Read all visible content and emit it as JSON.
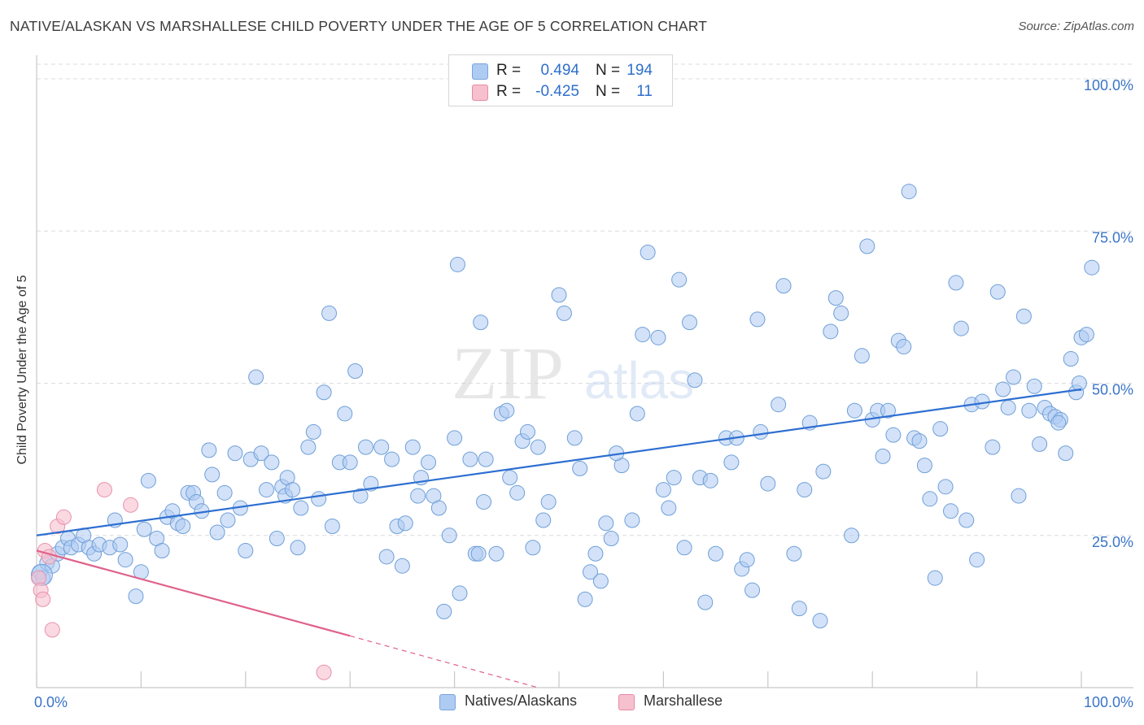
{
  "header": {
    "title": "NATIVE/ALASKAN VS MARSHALLESE CHILD POVERTY UNDER THE AGE OF 5 CORRELATION CHART",
    "source": "Source: ZipAtlas.com"
  },
  "watermark": {
    "zip": "ZIP",
    "atlas": "atlas"
  },
  "legend": {
    "rows": [
      {
        "r_label": "R =",
        "r_value": "0.494",
        "n_label": "N =",
        "n_value": "194",
        "color": "#aecbf2",
        "border": "#7aa3dc"
      },
      {
        "r_label": "R =",
        "r_value": "-0.425",
        "n_label": "N =",
        "n_value": "11",
        "color": "#f7c0cf",
        "border": "#e58aa5"
      }
    ]
  },
  "bottom_legend": {
    "natives": "Natives/Alaskans",
    "marshallese": "Marshallese"
  },
  "colors": {
    "native_fill": "#aecbf2",
    "native_stroke": "#6f9fd8",
    "native_line": "#2e6fd1",
    "marsh_fill": "#f7c0cf",
    "marsh_stroke": "#e892ab",
    "marsh_line": "#e0628a",
    "grid": "#dcdcdc",
    "tick_label": "#3a74c8"
  },
  "chart_data": {
    "type": "scatter",
    "title": "NATIVE/ALASKAN VS MARSHALLESE CHILD POVERTY UNDER THE AGE OF 5 CORRELATION CHART",
    "xlabel": "",
    "ylabel": "Child Poverty Under the Age of 5",
    "xlim": [
      0,
      100
    ],
    "ylim": [
      0,
      100
    ],
    "x_tick_labels": [
      "0.0%",
      "100.0%"
    ],
    "y_tick_labels": [
      {
        "value": 25,
        "label": "25.0%"
      },
      {
        "value": 50,
        "label": "50.0%"
      },
      {
        "value": 75,
        "label": "75.0%"
      },
      {
        "value": 100,
        "label": "100.0%"
      }
    ],
    "grid": true,
    "legend_position": "top-center",
    "series": [
      {
        "name": "Natives/Alaskans",
        "trend": {
          "x0": 0,
          "y0": 25.0,
          "x1": 100,
          "y1": 49.0
        },
        "points": [
          [
            0.3,
            19.0
          ],
          [
            0.6,
            18.0
          ],
          [
            1.0,
            20.5
          ],
          [
            1.5,
            20.0
          ],
          [
            2.0,
            22.0
          ],
          [
            2.5,
            23.0
          ],
          [
            3.0,
            24.5
          ],
          [
            3.3,
            23.0
          ],
          [
            4.0,
            23.5
          ],
          [
            4.5,
            25.0
          ],
          [
            5.0,
            23.0
          ],
          [
            5.5,
            22.0
          ],
          [
            6.0,
            23.5
          ],
          [
            7.0,
            23.0
          ],
          [
            7.5,
            27.5
          ],
          [
            8.0,
            23.5
          ],
          [
            8.5,
            21.0
          ],
          [
            9.5,
            15.0
          ],
          [
            10.0,
            19.0
          ],
          [
            10.3,
            26.0
          ],
          [
            10.7,
            34.0
          ],
          [
            11.5,
            24.5
          ],
          [
            12.0,
            22.5
          ],
          [
            12.5,
            28.0
          ],
          [
            13.0,
            29.0
          ],
          [
            13.5,
            27.0
          ],
          [
            14.0,
            26.5
          ],
          [
            14.5,
            32.0
          ],
          [
            15.0,
            32.0
          ],
          [
            15.3,
            30.5
          ],
          [
            15.8,
            29.0
          ],
          [
            16.5,
            39.0
          ],
          [
            16.8,
            35.0
          ],
          [
            17.3,
            25.5
          ],
          [
            18.0,
            32.0
          ],
          [
            18.3,
            27.5
          ],
          [
            19.0,
            38.5
          ],
          [
            19.5,
            29.5
          ],
          [
            20.0,
            22.5
          ],
          [
            20.5,
            37.5
          ],
          [
            21.0,
            51.0
          ],
          [
            21.5,
            38.5
          ],
          [
            22.0,
            32.5
          ],
          [
            22.5,
            37.0
          ],
          [
            23.0,
            24.5
          ],
          [
            23.5,
            33.0
          ],
          [
            23.8,
            31.5
          ],
          [
            24.0,
            34.5
          ],
          [
            24.5,
            32.5
          ],
          [
            25.0,
            23.0
          ],
          [
            25.3,
            29.5
          ],
          [
            26.0,
            39.5
          ],
          [
            26.5,
            42.0
          ],
          [
            27.0,
            31.0
          ],
          [
            27.5,
            48.5
          ],
          [
            28.0,
            61.5
          ],
          [
            28.3,
            26.5
          ],
          [
            29.0,
            37.0
          ],
          [
            29.5,
            45.0
          ],
          [
            30.0,
            37.0
          ],
          [
            30.5,
            52.0
          ],
          [
            31.0,
            31.5
          ],
          [
            31.5,
            39.5
          ],
          [
            32.0,
            33.5
          ],
          [
            33.0,
            39.5
          ],
          [
            33.5,
            21.5
          ],
          [
            34.0,
            37.5
          ],
          [
            34.5,
            26.5
          ],
          [
            35.0,
            20.0
          ],
          [
            35.3,
            27.0
          ],
          [
            36.0,
            39.5
          ],
          [
            36.5,
            31.5
          ],
          [
            36.8,
            34.5
          ],
          [
            37.5,
            37.0
          ],
          [
            38.0,
            31.5
          ],
          [
            38.5,
            29.5
          ],
          [
            39.0,
            12.5
          ],
          [
            39.5,
            25.0
          ],
          [
            40.0,
            41.0
          ],
          [
            40.5,
            15.5
          ],
          [
            40.3,
            69.5
          ],
          [
            41.5,
            37.5
          ],
          [
            42.0,
            22.0
          ],
          [
            42.5,
            60.0
          ],
          [
            42.8,
            30.5
          ],
          [
            43.0,
            37.5
          ],
          [
            44.0,
            22.0
          ],
          [
            44.5,
            45.0
          ],
          [
            45.0,
            45.5
          ],
          [
            45.3,
            34.5
          ],
          [
            46.0,
            32.0
          ],
          [
            46.5,
            40.5
          ],
          [
            47.0,
            42.0
          ],
          [
            47.5,
            23.0
          ],
          [
            48.0,
            39.5
          ],
          [
            48.5,
            27.5
          ],
          [
            49.0,
            30.5
          ],
          [
            50.0,
            64.5
          ],
          [
            50.5,
            61.5
          ],
          [
            51.5,
            41.0
          ],
          [
            52.0,
            36.0
          ],
          [
            52.5,
            14.5
          ],
          [
            53.0,
            19.0
          ],
          [
            53.5,
            22.0
          ],
          [
            54.0,
            17.5
          ],
          [
            54.5,
            27.0
          ],
          [
            55.0,
            24.5
          ],
          [
            56.0,
            36.5
          ],
          [
            57.0,
            27.5
          ],
          [
            57.5,
            45.0
          ],
          [
            58.0,
            58.0
          ],
          [
            58.5,
            71.5
          ],
          [
            59.5,
            57.5
          ],
          [
            60.0,
            32.5
          ],
          [
            60.5,
            29.5
          ],
          [
            61.0,
            34.5
          ],
          [
            61.5,
            67.0
          ],
          [
            62.0,
            23.0
          ],
          [
            63.0,
            50.5
          ],
          [
            63.5,
            34.5
          ],
          [
            64.0,
            14.0
          ],
          [
            64.5,
            34.0
          ],
          [
            65.0,
            22.0
          ],
          [
            66.0,
            41.0
          ],
          [
            66.5,
            37.0
          ],
          [
            67.0,
            41.0
          ],
          [
            67.5,
            19.5
          ],
          [
            68.0,
            21.0
          ],
          [
            69.0,
            60.5
          ],
          [
            69.3,
            42.0
          ],
          [
            70.0,
            33.5
          ],
          [
            71.0,
            46.5
          ],
          [
            71.5,
            66.0
          ],
          [
            72.5,
            22.0
          ],
          [
            73.0,
            13.0
          ],
          [
            73.5,
            32.5
          ],
          [
            74.0,
            43.5
          ],
          [
            75.0,
            11.0
          ],
          [
            75.3,
            35.5
          ],
          [
            76.0,
            58.5
          ],
          [
            76.5,
            64.0
          ],
          [
            77.0,
            61.5
          ],
          [
            78.0,
            25.0
          ],
          [
            78.3,
            45.5
          ],
          [
            79.0,
            54.5
          ],
          [
            79.5,
            72.5
          ],
          [
            80.0,
            44.0
          ],
          [
            80.5,
            45.5
          ],
          [
            81.0,
            38.0
          ],
          [
            81.5,
            45.5
          ],
          [
            82.0,
            41.5
          ],
          [
            82.5,
            57.0
          ],
          [
            83.0,
            56.0
          ],
          [
            83.5,
            81.5
          ],
          [
            84.0,
            41.0
          ],
          [
            84.5,
            40.5
          ],
          [
            85.0,
            36.5
          ],
          [
            85.5,
            31.0
          ],
          [
            86.0,
            18.0
          ],
          [
            86.5,
            42.5
          ],
          [
            87.0,
            33.0
          ],
          [
            87.5,
            29.0
          ],
          [
            88.0,
            66.5
          ],
          [
            88.5,
            59.0
          ],
          [
            89.0,
            27.5
          ],
          [
            89.5,
            46.5
          ],
          [
            90.0,
            21.0
          ],
          [
            90.5,
            47.0
          ],
          [
            91.5,
            39.5
          ],
          [
            92.0,
            65.0
          ],
          [
            92.5,
            49.0
          ],
          [
            93.0,
            46.0
          ],
          [
            93.5,
            51.0
          ],
          [
            94.0,
            31.5
          ],
          [
            94.5,
            61.0
          ],
          [
            95.5,
            49.5
          ],
          [
            96.0,
            40.0
          ],
          [
            96.5,
            46.0
          ],
          [
            97.0,
            45.0
          ],
          [
            97.5,
            44.5
          ],
          [
            98.0,
            44.0
          ],
          [
            98.5,
            38.5
          ],
          [
            99.0,
            54.0
          ],
          [
            99.5,
            48.5
          ],
          [
            99.8,
            50.0
          ],
          [
            100.0,
            57.5
          ],
          [
            100.5,
            58.0
          ],
          [
            101.0,
            69.0
          ],
          [
            95.0,
            45.5
          ],
          [
            97.8,
            43.5
          ],
          [
            42.3,
            22.0
          ],
          [
            55.5,
            38.5
          ],
          [
            62.5,
            60.0
          ],
          [
            68.5,
            16.0
          ]
        ]
      },
      {
        "name": "Marshallese",
        "trend": {
          "x0": 0,
          "y0": 22.5,
          "x1": 30,
          "y1": 8.5,
          "dash_to_x": 48,
          "dash_to_y": 0
        },
        "points": [
          [
            0.2,
            18.0
          ],
          [
            0.4,
            16.0
          ],
          [
            0.6,
            14.5
          ],
          [
            0.8,
            22.5
          ],
          [
            1.2,
            21.5
          ],
          [
            1.5,
            9.5
          ],
          [
            2.0,
            26.5
          ],
          [
            2.6,
            28.0
          ],
          [
            6.5,
            32.5
          ],
          [
            9.0,
            30.0
          ],
          [
            27.5,
            2.5
          ]
        ]
      }
    ]
  }
}
